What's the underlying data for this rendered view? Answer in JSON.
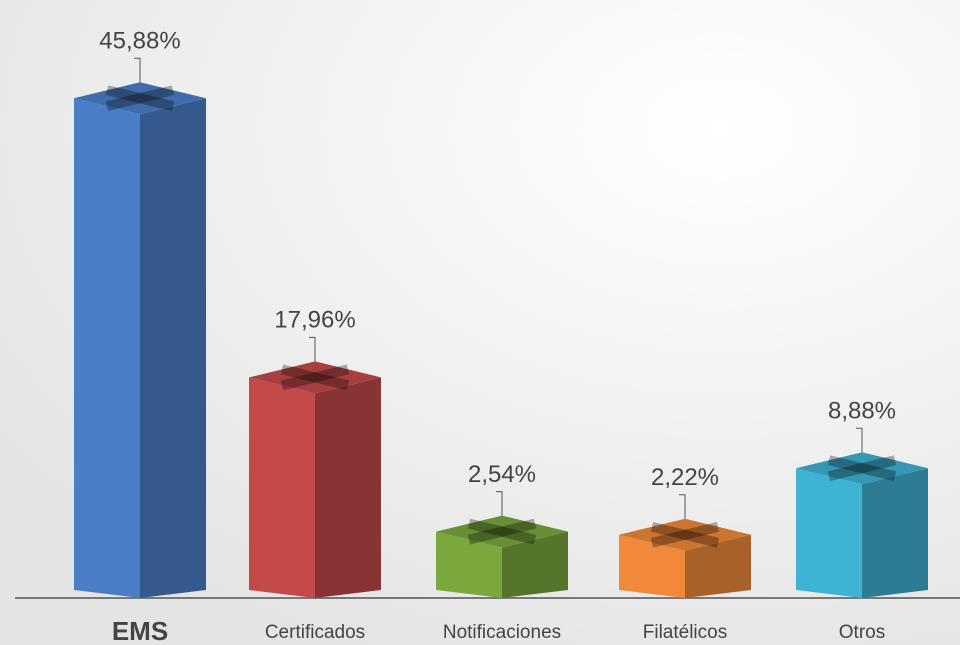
{
  "chart_data": {
    "type": "bar",
    "categories": [
      "EMS",
      "Certificados",
      "Notificaciones",
      "Filatélicos",
      "Otros"
    ],
    "values": [
      45.88,
      17.96,
      2.54,
      2.22,
      8.88
    ],
    "value_labels": [
      "45,88%",
      "17,96%",
      "2,54%",
      "2,22%",
      "8,88%"
    ],
    "colors": [
      "#4a7fc8",
      "#c44a4a",
      "#7aa83c",
      "#f08a3a",
      "#3fb3d4"
    ]
  }
}
